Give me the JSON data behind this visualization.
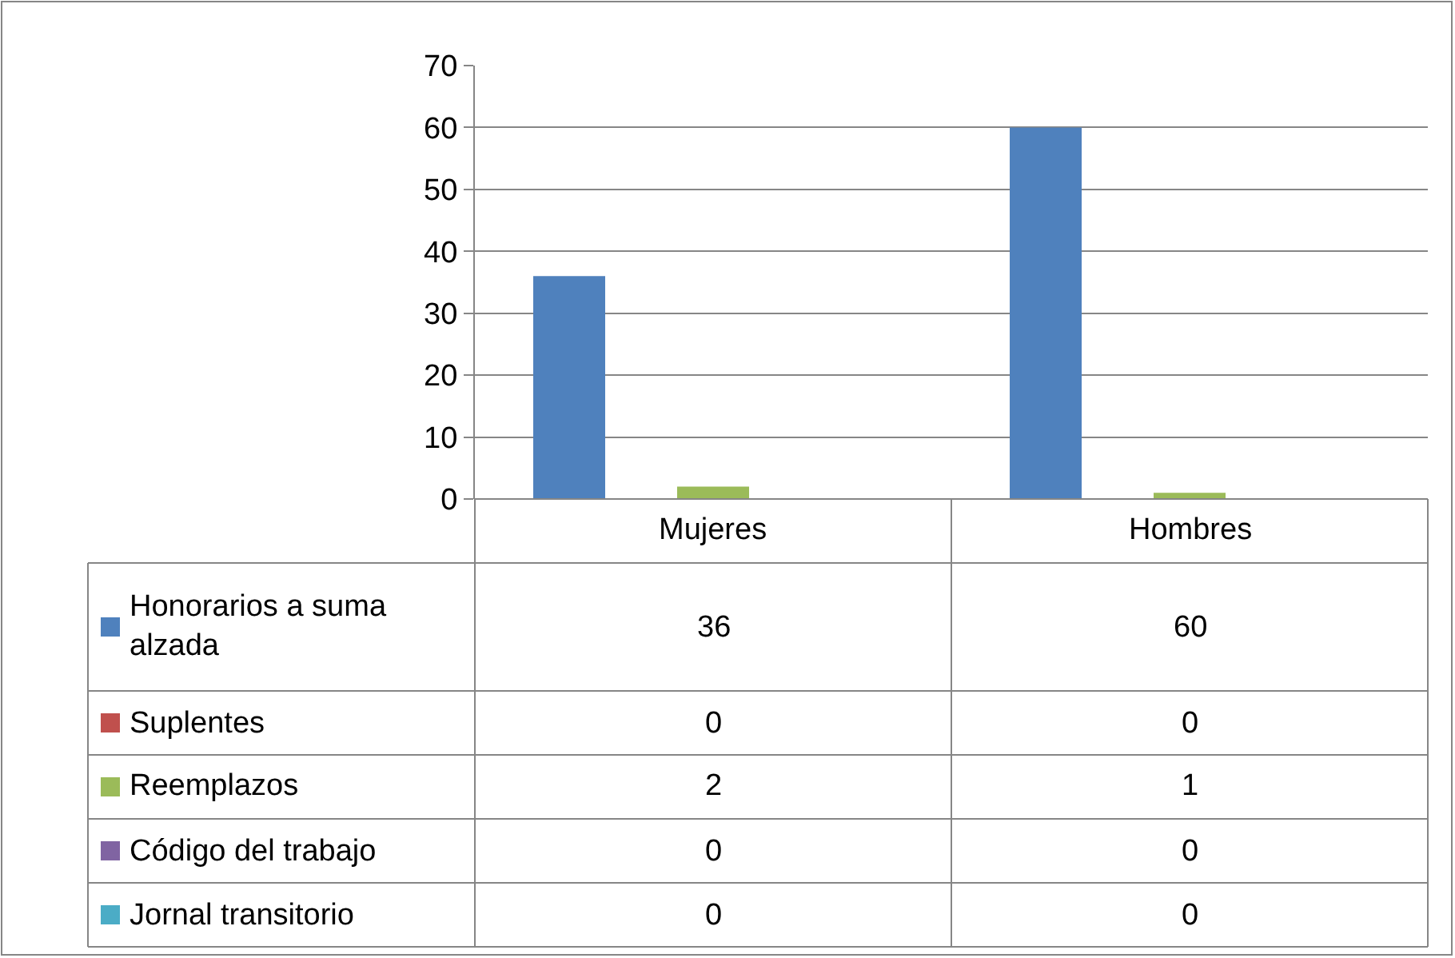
{
  "chart_data": {
    "type": "bar",
    "categories": [
      "Mujeres",
      "Hombres"
    ],
    "series": [
      {
        "name": "Honorarios a suma alzada",
        "color": "#4f81bd",
        "values": [
          36,
          60
        ]
      },
      {
        "name": "Suplentes",
        "color": "#c0504d",
        "values": [
          0,
          0
        ]
      },
      {
        "name": "Reemplazos",
        "color": "#9bbb59",
        "values": [
          2,
          1
        ]
      },
      {
        "name": "Código del trabajo",
        "color": "#8064a2",
        "values": [
          0,
          0
        ]
      },
      {
        "name": "Jornal transitorio",
        "color": "#4bacc6",
        "values": [
          0,
          0
        ]
      }
    ],
    "ylim": [
      0,
      70
    ],
    "yticks": [
      0,
      10,
      20,
      30,
      40,
      50,
      60,
      70
    ],
    "grid": "y",
    "legend": "bottom",
    "data_labels": true
  }
}
